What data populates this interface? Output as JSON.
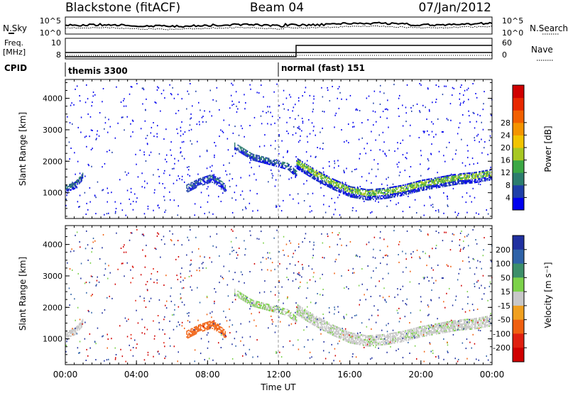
{
  "header": {
    "station": "Blackstone (fitACF)",
    "beam": "Beam 04",
    "date": "07/Jan/2012"
  },
  "noise_panel": {
    "left_label": "N.Sky",
    "right_label": "N.Search",
    "ytick_top": "10^5",
    "ytick_bottom": "10^0"
  },
  "freq_panel": {
    "left_label_1": "Freq.",
    "left_label_2": "[MHz]",
    "right_label": "Nave",
    "ytick_left_top": "10",
    "ytick_left_bottom": "8",
    "ytick_right_top": "60",
    "ytick_right_bottom": "0"
  },
  "cpid_panel": {
    "label": "CPID",
    "segments": [
      {
        "name": "themis 3300",
        "start_hour": 0
      },
      {
        "name": "normal (fast) 151",
        "start_hour": 12
      }
    ]
  },
  "chart_data": [
    {
      "type": "heatmap",
      "parameter": "Power",
      "ylabel": "Slant Range [km]",
      "ylim": [
        180,
        4600
      ],
      "yticks": [
        "1000",
        "2000",
        "3000",
        "4000"
      ],
      "xlim": [
        0,
        24
      ],
      "colorbar": {
        "label": "Power [dB]",
        "range": [
          0,
          32
        ],
        "ticks": [
          "4",
          "8",
          "12",
          "16",
          "20",
          "24",
          "28"
        ],
        "colors": [
          "#0000ee",
          "#1f3fa8",
          "#2c7d6e",
          "#3ca845",
          "#a8c822",
          "#f2c400",
          "#f49400",
          "#f26000",
          "#e82800",
          "#d00000"
        ]
      }
    },
    {
      "type": "heatmap",
      "parameter": "Velocity",
      "ylabel": "Slant Range [km]",
      "xlabel": "Time UT",
      "ylim": [
        180,
        4600
      ],
      "yticks": [
        "1000",
        "2000",
        "3000",
        "4000"
      ],
      "xlim": [
        0,
        24
      ],
      "xticks": [
        "00:00",
        "04:00",
        "08:00",
        "12:00",
        "16:00",
        "20:00",
        "00:00"
      ],
      "colorbar": {
        "label": "Velocity [m s⁻¹]",
        "ticks": [
          "200",
          "100",
          "50",
          "15",
          "-15",
          "-50",
          "-100",
          "-200"
        ],
        "colors": [
          "#2030a0",
          "#2f63a8",
          "#3c8f6a",
          "#7cd24a",
          "#c8c8c8",
          "#f0a020",
          "#f06010",
          "#e02010",
          "#d00000"
        ]
      }
    }
  ]
}
